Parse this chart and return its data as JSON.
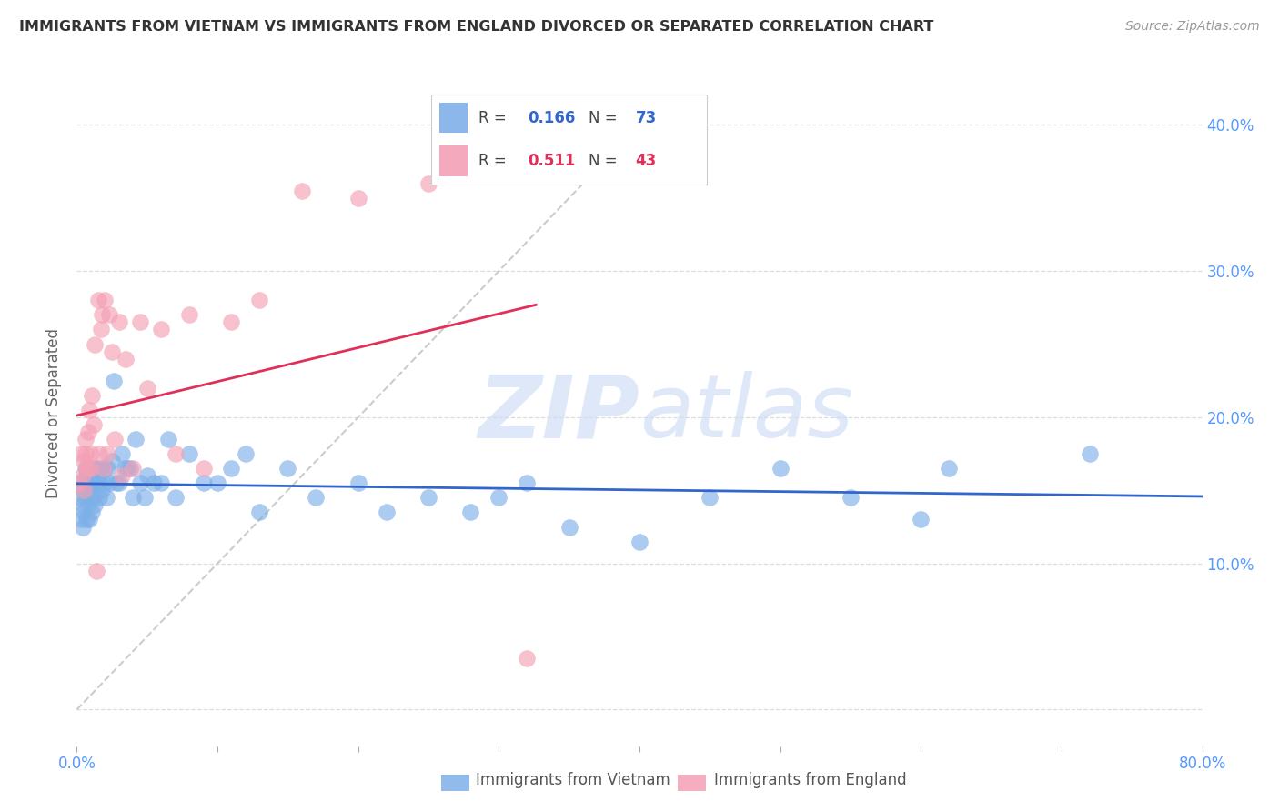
{
  "title": "IMMIGRANTS FROM VIETNAM VS IMMIGRANTS FROM ENGLAND DIVORCED OR SEPARATED CORRELATION CHART",
  "source": "Source: ZipAtlas.com",
  "ylabel": "Divorced or Separated",
  "xlim": [
    0.0,
    0.8
  ],
  "ylim": [
    -0.025,
    0.43
  ],
  "series1_label": "Immigrants from Vietnam",
  "series2_label": "Immigrants from England",
  "color1": "#7EB0E8",
  "color2": "#F4A0B5",
  "line1_color": "#3366CC",
  "line2_color": "#E0305A",
  "diag_color": "#cccccc",
  "axis_color": "#5599FF",
  "grid_color": "#dddddd",
  "watermark_color": "#c8daf5",
  "title_color": "#333333",
  "ylabel_color": "#666666",
  "source_color": "#999999",
  "legend_r1": "0.166",
  "legend_n1": "73",
  "legend_r2": "0.511",
  "legend_n2": "43",
  "vietnam_x": [
    0.002,
    0.003,
    0.003,
    0.004,
    0.004,
    0.005,
    0.005,
    0.006,
    0.006,
    0.007,
    0.007,
    0.008,
    0.008,
    0.009,
    0.009,
    0.01,
    0.01,
    0.011,
    0.011,
    0.012,
    0.012,
    0.013,
    0.013,
    0.014,
    0.015,
    0.016,
    0.016,
    0.017,
    0.018,
    0.019,
    0.02,
    0.021,
    0.022,
    0.023,
    0.025,
    0.026,
    0.028,
    0.03,
    0.032,
    0.034,
    0.036,
    0.038,
    0.04,
    0.042,
    0.045,
    0.048,
    0.05,
    0.055,
    0.06,
    0.065,
    0.07,
    0.08,
    0.09,
    0.1,
    0.11,
    0.12,
    0.13,
    0.15,
    0.17,
    0.2,
    0.22,
    0.25,
    0.28,
    0.3,
    0.32,
    0.35,
    0.4,
    0.45,
    0.5,
    0.55,
    0.6,
    0.62,
    0.72
  ],
  "vietnam_y": [
    0.145,
    0.13,
    0.155,
    0.14,
    0.125,
    0.15,
    0.135,
    0.165,
    0.145,
    0.16,
    0.13,
    0.155,
    0.14,
    0.165,
    0.13,
    0.155,
    0.145,
    0.16,
    0.135,
    0.165,
    0.145,
    0.155,
    0.14,
    0.165,
    0.16,
    0.155,
    0.145,
    0.165,
    0.15,
    0.155,
    0.165,
    0.145,
    0.165,
    0.155,
    0.17,
    0.225,
    0.155,
    0.155,
    0.175,
    0.165,
    0.165,
    0.165,
    0.145,
    0.185,
    0.155,
    0.145,
    0.16,
    0.155,
    0.155,
    0.185,
    0.145,
    0.175,
    0.155,
    0.155,
    0.165,
    0.175,
    0.135,
    0.165,
    0.145,
    0.155,
    0.135,
    0.145,
    0.135,
    0.145,
    0.155,
    0.125,
    0.115,
    0.145,
    0.165,
    0.145,
    0.13,
    0.165,
    0.175
  ],
  "england_x": [
    0.002,
    0.003,
    0.004,
    0.005,
    0.005,
    0.006,
    0.006,
    0.007,
    0.008,
    0.008,
    0.009,
    0.01,
    0.01,
    0.011,
    0.012,
    0.013,
    0.014,
    0.015,
    0.016,
    0.017,
    0.018,
    0.019,
    0.02,
    0.022,
    0.023,
    0.025,
    0.027,
    0.03,
    0.032,
    0.035,
    0.04,
    0.045,
    0.05,
    0.06,
    0.07,
    0.08,
    0.09,
    0.11,
    0.13,
    0.16,
    0.2,
    0.25,
    0.32
  ],
  "england_y": [
    0.155,
    0.175,
    0.16,
    0.17,
    0.15,
    0.175,
    0.185,
    0.165,
    0.19,
    0.165,
    0.205,
    0.175,
    0.165,
    0.215,
    0.195,
    0.25,
    0.095,
    0.28,
    0.175,
    0.26,
    0.27,
    0.165,
    0.28,
    0.175,
    0.27,
    0.245,
    0.185,
    0.265,
    0.16,
    0.24,
    0.165,
    0.265,
    0.22,
    0.26,
    0.175,
    0.27,
    0.165,
    0.265,
    0.28,
    0.355,
    0.35,
    0.36,
    0.035
  ]
}
